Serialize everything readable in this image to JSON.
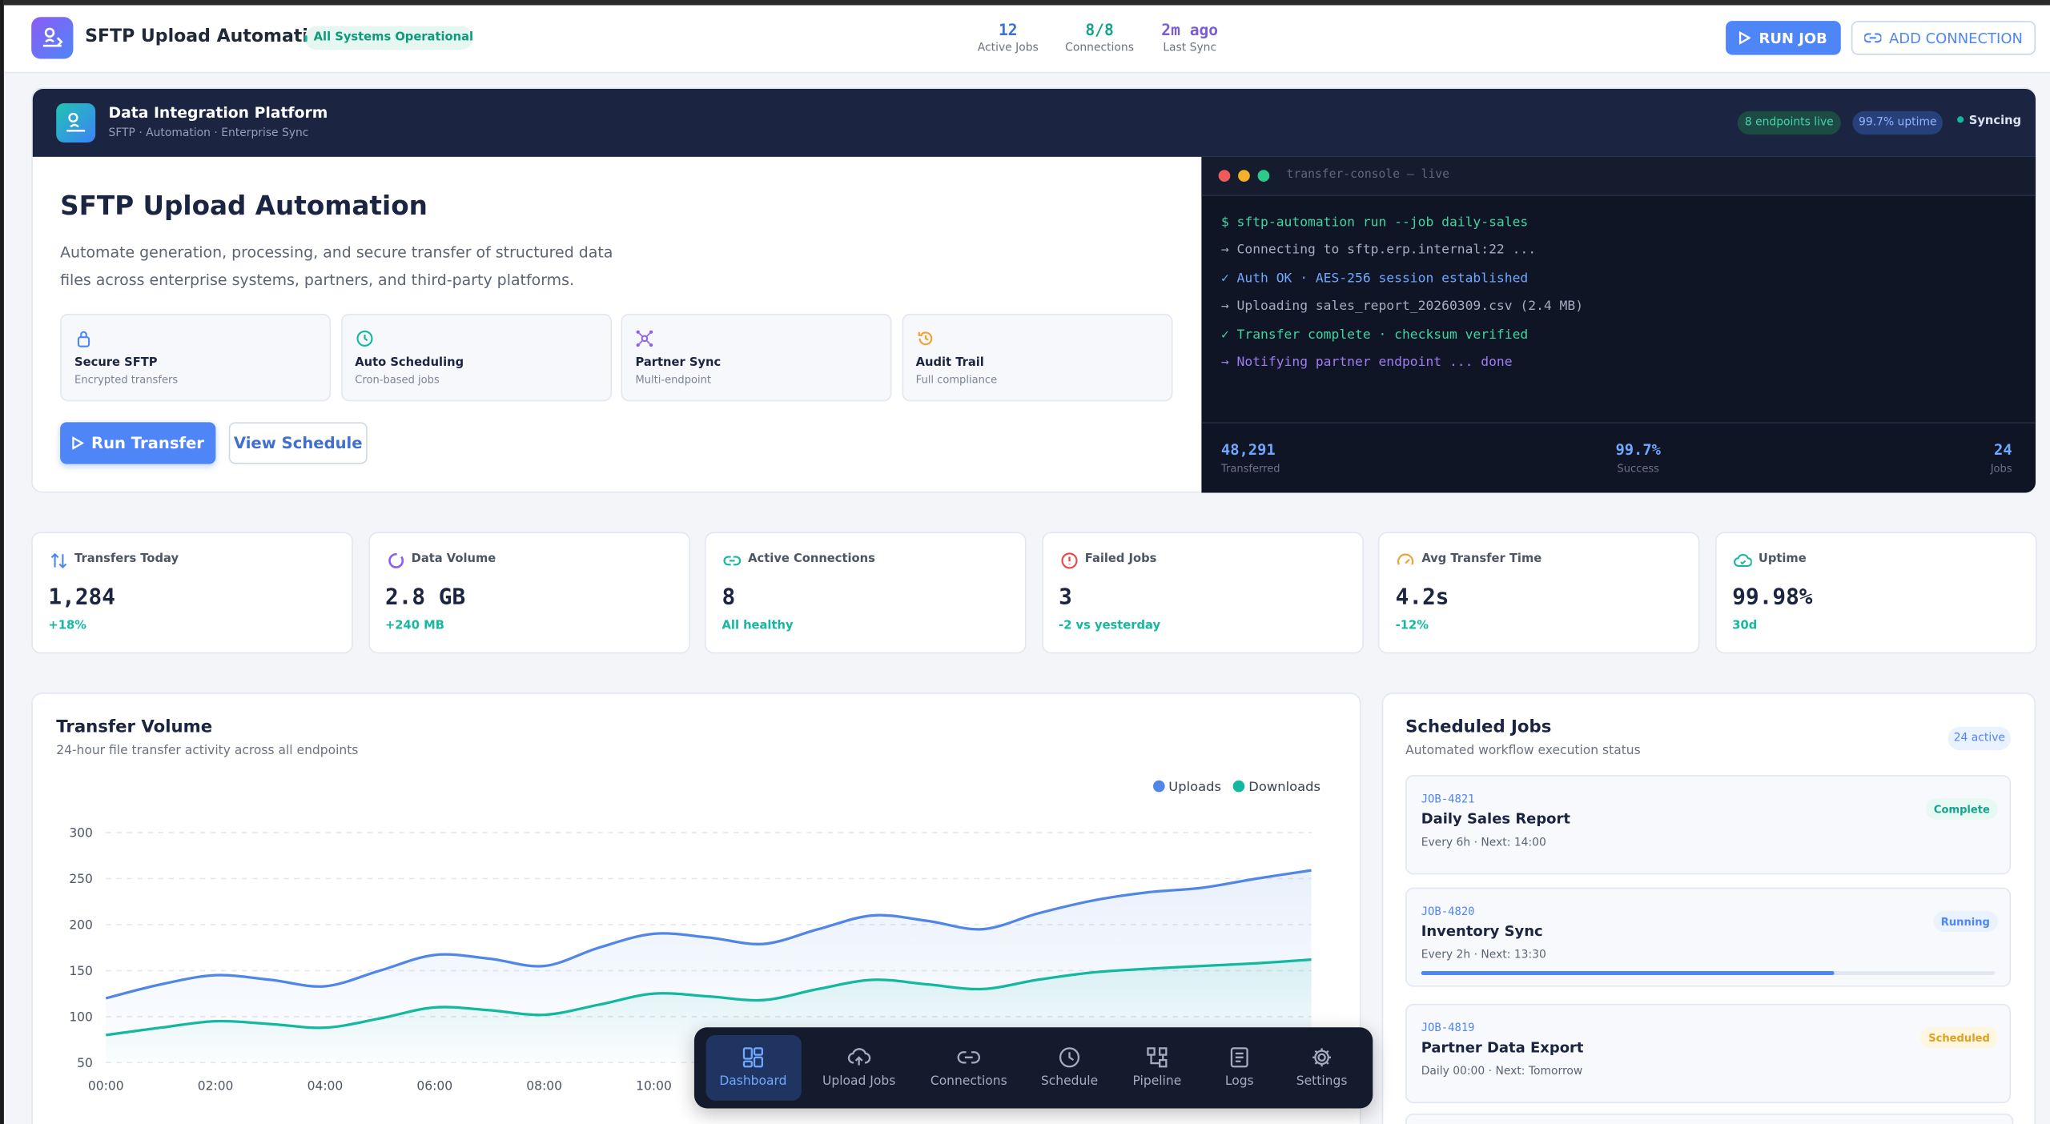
{
  "header": {
    "title": "SFTP Upload Automation",
    "status": "All Systems Operational",
    "stats": [
      {
        "value": "12",
        "label": "Active Jobs"
      },
      {
        "value": "8/8",
        "label": "Connections"
      },
      {
        "value": "2m ago",
        "label": "Last Sync"
      }
    ],
    "buttons": [
      "RUN JOB",
      "ADD CONNECTION"
    ]
  },
  "banner": {
    "title": "Data Integration Platform",
    "subtitle": "SFTP · Automation · Enterprise Sync",
    "pills": [
      "8 endpoints live",
      "99.7% uptime"
    ],
    "sync": "Syncing"
  },
  "hero": {
    "title": "SFTP Upload Automation",
    "description": "Automate generation, processing, and secure transfer of structured data files across enterprise systems, partners, and third-party platforms.",
    "features": [
      {
        "title": "Secure SFTP",
        "subtitle": "Encrypted transfers"
      },
      {
        "title": "Auto Scheduling",
        "subtitle": "Cron-based jobs"
      },
      {
        "title": "Partner Sync",
        "subtitle": "Multi-endpoint"
      },
      {
        "title": "Audit Trail",
        "subtitle": "Full compliance"
      }
    ],
    "buttons": [
      "Run Transfer",
      "View Schedule"
    ]
  },
  "console": {
    "title": "transfer-console — live",
    "lines": [
      "$ sftp-automation run --job daily-sales",
      "→ Connecting to sftp.erp.internal:22 ...",
      "✓ Auth OK · AES-256 session established",
      "→ Uploading sales_report_20260309.csv (2.4 MB)",
      "✓ Transfer complete · checksum verified",
      "→ Notifying partner endpoint ... done"
    ],
    "stats": [
      {
        "value": "48,291",
        "label": "Transferred"
      },
      {
        "value": "99.7%",
        "label": "Success"
      },
      {
        "value": "24",
        "label": "Jobs"
      }
    ]
  },
  "stats": [
    {
      "label": "Transfers Today",
      "value": "1,284",
      "change": "+18%"
    },
    {
      "label": "Data Volume",
      "value": "2.8 GB",
      "change": "+240 MB"
    },
    {
      "label": "Active Connections",
      "value": "8",
      "change": "All healthy"
    },
    {
      "label": "Failed Jobs",
      "value": "3",
      "change": "-2 vs yesterday"
    },
    {
      "label": "Avg Transfer Time",
      "value": "4.2s",
      "change": "-12%"
    },
    {
      "label": "Uptime",
      "value": "99.98%",
      "change": "30d"
    }
  ],
  "chart_data": {
    "type": "line",
    "title": "Transfer Volume",
    "subtitle": "24-hour file transfer activity across all endpoints",
    "categories": [
      "00:00",
      null,
      "02:00",
      null,
      "04:00",
      null,
      "06:00",
      null,
      "08:00",
      null,
      "10:00",
      null,
      null,
      null,
      null,
      null,
      null,
      null,
      null,
      null,
      null,
      null,
      null
    ],
    "series": [
      {
        "name": "Uploads",
        "color": "#4f86e8",
        "values": [
          120,
          135,
          145,
          140,
          133,
          150,
          167,
          163,
          155,
          175,
          190,
          186,
          179,
          195,
          210,
          204,
          195,
          212,
          226,
          235,
          240,
          250,
          259
        ]
      },
      {
        "name": "Downloads",
        "color": "#14b8a0",
        "values": [
          80,
          88,
          95,
          92,
          88,
          98,
          110,
          107,
          102,
          113,
          125,
          122,
          118,
          130,
          140,
          135,
          130,
          140,
          148,
          152,
          155,
          158,
          162
        ]
      }
    ],
    "ylim": [
      50,
      300
    ],
    "yticks": [
      50,
      100,
      150,
      200,
      250,
      300
    ],
    "grid": true,
    "legend": "top-right"
  },
  "jobs": {
    "title": "Scheduled Jobs",
    "subtitle": "Automated workflow execution status",
    "badge": "24 active",
    "items": [
      {
        "id": "JOB-4821",
        "name": "Daily Sales Report",
        "schedule": "Every 6h · Next: 14:00",
        "status": "Complete"
      },
      {
        "id": "JOB-4820",
        "name": "Inventory Sync",
        "schedule": "Every 2h · Next: 13:30",
        "status": "Running",
        "progress": 72
      },
      {
        "id": "JOB-4819",
        "name": "Partner Data Export",
        "schedule": "Daily 00:00 · Next: Tomorrow",
        "status": "Scheduled"
      }
    ]
  },
  "nav": {
    "items": [
      "Dashboard",
      "Upload Jobs",
      "Connections",
      "Schedule",
      "Pipeline",
      "Logs",
      "Settings"
    ],
    "active": 0
  }
}
